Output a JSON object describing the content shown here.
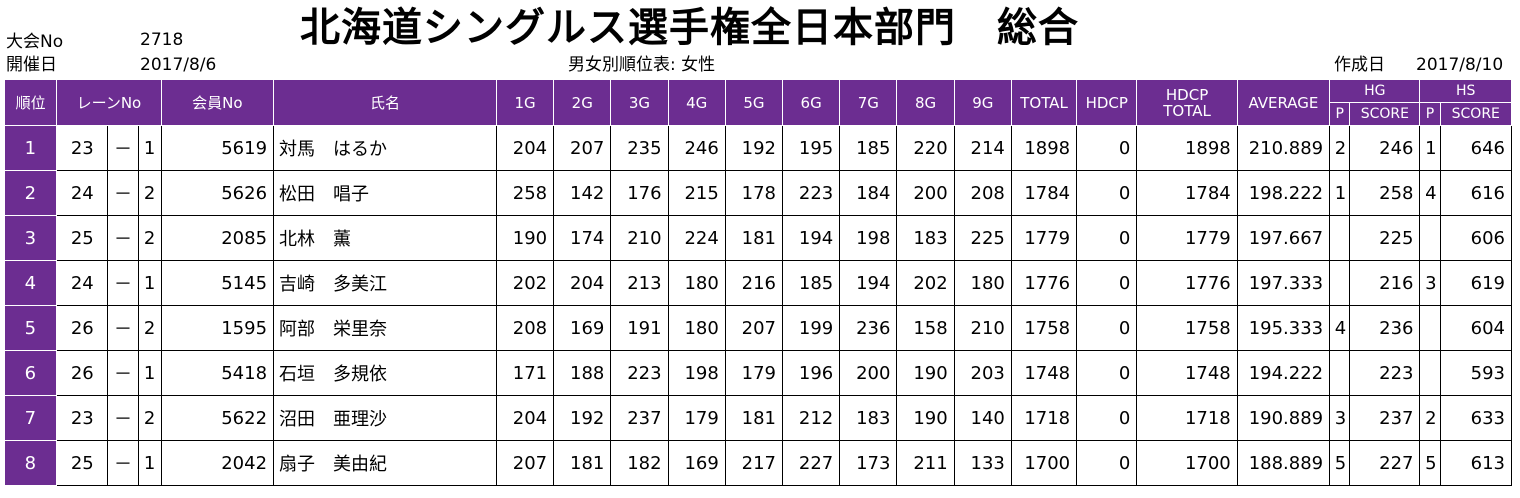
{
  "header": {
    "title": "北海道シングルス選手権全日本部門　総合",
    "tournament_no_label": "大会No",
    "tournament_no": "2718",
    "date_label": "開催日",
    "date": "2017/8/6",
    "subtitle": "男女別順位表: 女性",
    "created_label": "作成日",
    "created_date": "2017/8/10"
  },
  "columns": {
    "rank": "順位",
    "lane": "レーンNo",
    "member_no": "会員No",
    "name": "氏名",
    "games": [
      "1G",
      "2G",
      "3G",
      "4G",
      "5G",
      "6G",
      "7G",
      "8G",
      "9G"
    ],
    "total": "TOTAL",
    "hdcp": "HDCP",
    "hdcp_total_1": "HDCP",
    "hdcp_total_2": "TOTAL",
    "average": "AVERAGE",
    "hg": "HG",
    "hs": "HS",
    "p": "P",
    "score": "SCORE"
  },
  "rows": [
    {
      "rank": "1",
      "lane1": "23",
      "dash": "－",
      "lane2": "1",
      "member": "5619",
      "name": "対馬　はるか",
      "games": [
        "204",
        "207",
        "235",
        "246",
        "192",
        "195",
        "185",
        "220",
        "214"
      ],
      "total": "1898",
      "hdcp": "0",
      "hdcp_total": "1898",
      "average": "210.889",
      "hg_p": "2",
      "hg_score": "246",
      "hs_p": "1",
      "hs_score": "646"
    },
    {
      "rank": "2",
      "lane1": "24",
      "dash": "－",
      "lane2": "2",
      "member": "5626",
      "name": "松田　唱子",
      "games": [
        "258",
        "142",
        "176",
        "215",
        "178",
        "223",
        "184",
        "200",
        "208"
      ],
      "total": "1784",
      "hdcp": "0",
      "hdcp_total": "1784",
      "average": "198.222",
      "hg_p": "1",
      "hg_score": "258",
      "hs_p": "4",
      "hs_score": "616"
    },
    {
      "rank": "3",
      "lane1": "25",
      "dash": "－",
      "lane2": "2",
      "member": "2085",
      "name": "北林　薫",
      "games": [
        "190",
        "174",
        "210",
        "224",
        "181",
        "194",
        "198",
        "183",
        "225"
      ],
      "total": "1779",
      "hdcp": "0",
      "hdcp_total": "1779",
      "average": "197.667",
      "hg_p": "",
      "hg_score": "225",
      "hs_p": "",
      "hs_score": "606"
    },
    {
      "rank": "4",
      "lane1": "24",
      "dash": "－",
      "lane2": "1",
      "member": "5145",
      "name": "吉崎　多美江",
      "games": [
        "202",
        "204",
        "213",
        "180",
        "216",
        "185",
        "194",
        "202",
        "180"
      ],
      "total": "1776",
      "hdcp": "0",
      "hdcp_total": "1776",
      "average": "197.333",
      "hg_p": "",
      "hg_score": "216",
      "hs_p": "3",
      "hs_score": "619"
    },
    {
      "rank": "5",
      "lane1": "26",
      "dash": "－",
      "lane2": "2",
      "member": "1595",
      "name": "阿部　栄里奈",
      "games": [
        "208",
        "169",
        "191",
        "180",
        "207",
        "199",
        "236",
        "158",
        "210"
      ],
      "total": "1758",
      "hdcp": "0",
      "hdcp_total": "1758",
      "average": "195.333",
      "hg_p": "4",
      "hg_score": "236",
      "hs_p": "",
      "hs_score": "604"
    },
    {
      "rank": "6",
      "lane1": "26",
      "dash": "－",
      "lane2": "1",
      "member": "5418",
      "name": "石垣　多規依",
      "games": [
        "171",
        "188",
        "223",
        "198",
        "179",
        "196",
        "200",
        "190",
        "203"
      ],
      "total": "1748",
      "hdcp": "0",
      "hdcp_total": "1748",
      "average": "194.222",
      "hg_p": "",
      "hg_score": "223",
      "hs_p": "",
      "hs_score": "593"
    },
    {
      "rank": "7",
      "lane1": "23",
      "dash": "－",
      "lane2": "2",
      "member": "5622",
      "name": "沼田　亜理沙",
      "games": [
        "204",
        "192",
        "237",
        "179",
        "181",
        "212",
        "183",
        "190",
        "140"
      ],
      "total": "1718",
      "hdcp": "0",
      "hdcp_total": "1718",
      "average": "190.889",
      "hg_p": "3",
      "hg_score": "237",
      "hs_p": "2",
      "hs_score": "633"
    },
    {
      "rank": "8",
      "lane1": "25",
      "dash": "－",
      "lane2": "1",
      "member": "2042",
      "name": "扇子　美由紀",
      "games": [
        "207",
        "181",
        "182",
        "169",
        "217",
        "227",
        "173",
        "211",
        "133"
      ],
      "total": "1700",
      "hdcp": "0",
      "hdcp_total": "1700",
      "average": "188.889",
      "hg_p": "5",
      "hg_score": "227",
      "hs_p": "5",
      "hs_score": "613"
    }
  ]
}
